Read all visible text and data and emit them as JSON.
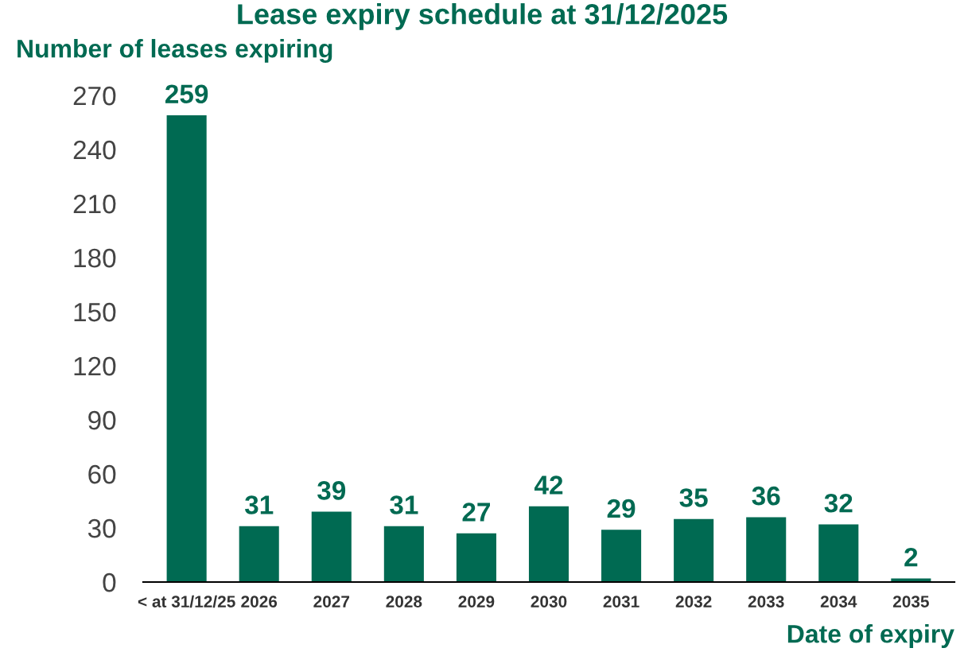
{
  "chart_data": {
    "type": "bar",
    "title": "Lease expiry schedule at 31/12/2025",
    "ylabel": "Number of leases expiring",
    "xlabel": "Date of expiry",
    "categories": [
      "< at 31/12/25",
      "2026",
      "2027",
      "2028",
      "2029",
      "2030",
      "2031",
      "2032",
      "2033",
      "2034",
      "2035"
    ],
    "values": [
      259,
      31,
      39,
      31,
      27,
      42,
      29,
      35,
      36,
      32,
      2
    ],
    "color": "#006a52",
    "ylim": [
      0,
      270
    ],
    "yticks": [
      0,
      30,
      60,
      90,
      120,
      150,
      180,
      210,
      240,
      270
    ],
    "grid": false,
    "data_labels": true
  }
}
